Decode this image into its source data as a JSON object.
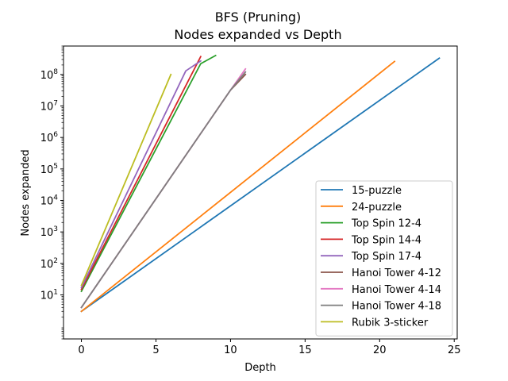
{
  "chart_data": {
    "type": "line",
    "title": "BFS (Pruning)",
    "subtitle": "Nodes expanded vs Depth",
    "xlabel": "Depth",
    "ylabel": "Nodes expanded",
    "xlim": [
      -1.2,
      25.2
    ],
    "ylim": [
      0.4,
      800000000
    ],
    "yscale": "log",
    "grid": false,
    "legend_position": "lower right",
    "x_ticks": [
      0,
      5,
      10,
      15,
      20,
      25
    ],
    "y_ticks": [
      {
        "base": "10",
        "exp": "1",
        "value": 10
      },
      {
        "base": "10",
        "exp": "2",
        "value": 100
      },
      {
        "base": "10",
        "exp": "3",
        "value": 1000
      },
      {
        "base": "10",
        "exp": "4",
        "value": 10000
      },
      {
        "base": "10",
        "exp": "5",
        "value": 100000
      },
      {
        "base": "10",
        "exp": "6",
        "value": 1000000
      },
      {
        "base": "10",
        "exp": "7",
        "value": 10000000
      },
      {
        "base": "10",
        "exp": "8",
        "value": 100000000
      }
    ],
    "series": [
      {
        "name": "15-puzzle",
        "color": "#1f77b4",
        "x": [
          0,
          24
        ],
        "y": [
          3,
          330000000
        ]
      },
      {
        "name": "24-puzzle",
        "color": "#ff7f0e",
        "x": [
          0,
          21
        ],
        "y": [
          3,
          260000000
        ]
      },
      {
        "name": "Top Spin 12-4",
        "color": "#2ca02c",
        "x": [
          0,
          8,
          9
        ],
        "y": [
          13,
          220000000,
          400000000
        ]
      },
      {
        "name": "Top Spin 14-4",
        "color": "#d62728",
        "x": [
          0,
          8
        ],
        "y": [
          15,
          370000000
        ]
      },
      {
        "name": "Top Spin 17-4",
        "color": "#9467bd",
        "x": [
          0,
          7,
          8
        ],
        "y": [
          17,
          130000000,
          270000000
        ]
      },
      {
        "name": "Hanoi Tower 4-12",
        "color": "#8c564b",
        "x": [
          0,
          10,
          11
        ],
        "y": [
          4,
          32000000,
          100000000
        ]
      },
      {
        "name": "Hanoi Tower 4-14",
        "color": "#e377c2",
        "x": [
          0,
          10,
          11
        ],
        "y": [
          4,
          32000000,
          150000000
        ]
      },
      {
        "name": "Hanoi Tower 4-18",
        "color": "#7f7f7f",
        "x": [
          0,
          10,
          11
        ],
        "y": [
          4,
          32000000,
          120000000
        ]
      },
      {
        "name": "Rubik 3-sticker",
        "color": "#bcbd22",
        "x": [
          0,
          6
        ],
        "y": [
          20,
          100000000
        ]
      }
    ]
  }
}
